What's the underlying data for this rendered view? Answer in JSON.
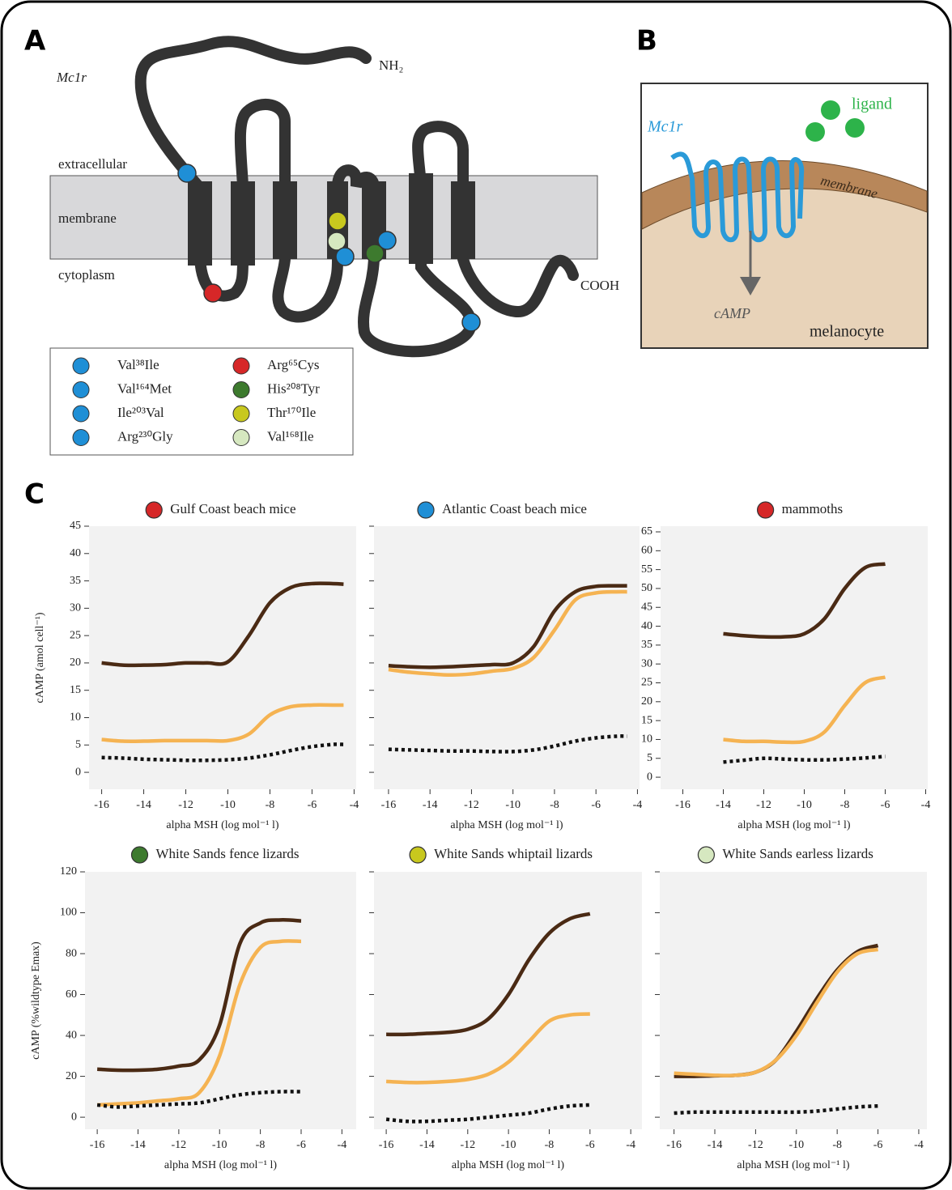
{
  "panel_labels": [
    "A",
    "B",
    "C"
  ],
  "panel_a": {
    "gene": "Mc1r",
    "n_terminus": "NH₂",
    "c_terminus": "COOH",
    "regions": [
      "extracellular",
      "membrane",
      "cytoplasm"
    ],
    "legend": [
      {
        "label": "Val³⁸Ile",
        "color": "#1f8fd6"
      },
      {
        "label": "Val¹⁶⁴Met",
        "color": "#1f8fd6"
      },
      {
        "label": "Ile²⁰³Val",
        "color": "#1f8fd6"
      },
      {
        "label": "Arg²³⁰Gly",
        "color": "#1f8fd6"
      },
      {
        "label": "Arg⁶⁵Cys",
        "color": "#d62728"
      },
      {
        "label": "His²⁰⁸Tyr",
        "color": "#3d7a2e"
      },
      {
        "label": "Thr¹⁷⁰Ile",
        "color": "#c8c81e"
      },
      {
        "label": "Val¹⁶⁸Ile",
        "color": "#d6e8c0"
      }
    ]
  },
  "panel_b": {
    "gene": "Mc1r",
    "ligand": "ligand",
    "membrane": "membrane",
    "product": "cAMP",
    "cell": "melanocyte"
  },
  "chart_data": [
    {
      "type": "line",
      "title": "Gulf Coast beach mice",
      "title_color": "#d62728",
      "ylabel": "cAMP (amol cell⁻¹)",
      "xlabel": "alpha MSH (log mol⁻¹ l)",
      "x": [
        -16,
        -15,
        -14,
        -13,
        -12,
        -11,
        -10,
        -9,
        -8,
        -7,
        -6,
        -5,
        -4.5
      ],
      "xlim": [
        -16.6,
        -3.9
      ],
      "xticks": [
        -16,
        -14,
        -12,
        -10,
        -8,
        -6,
        -4
      ],
      "ylim": [
        -3.1,
        45
      ],
      "yticks": [
        0,
        5,
        10,
        15,
        20,
        25,
        30,
        35,
        40,
        45
      ],
      "ytick_labels": true,
      "series": [
        {
          "color": "#4a2a14",
          "dash": false,
          "values": [
            20,
            19.6,
            19.6,
            19.7,
            20,
            20,
            20.2,
            25,
            31,
            33.8,
            34.5,
            34.5,
            34.4
          ]
        },
        {
          "color": "#f5b352",
          "dash": false,
          "values": [
            6,
            5.7,
            5.7,
            5.8,
            5.8,
            5.8,
            5.8,
            7,
            10.5,
            12,
            12.3,
            12.3,
            12.3
          ]
        },
        {
          "color": "#111111",
          "dash": true,
          "values": [
            2.7,
            2.6,
            2.4,
            2.3,
            2.2,
            2.2,
            2.3,
            2.6,
            3.2,
            4,
            4.7,
            5.1,
            5.1
          ]
        }
      ]
    },
    {
      "type": "line",
      "title": "Atlantic Coast beach mice",
      "title_color": "#1f8fd6",
      "xlabel": "alpha MSH (log mol⁻¹ l)",
      "x": [
        -16,
        -15,
        -14,
        -13,
        -12,
        -11,
        -10,
        -9,
        -8,
        -7,
        -6,
        -5,
        -4.5
      ],
      "xlim": [
        -16.7,
        -3.9
      ],
      "xticks": [
        -16,
        -14,
        -12,
        -10,
        -8,
        -6,
        -4
      ],
      "ylim": [
        -3.1,
        45
      ],
      "yticks": [
        0,
        5,
        10,
        15,
        20,
        25,
        30,
        35,
        40,
        45
      ],
      "ytick_labels": false,
      "series": [
        {
          "color": "#4a2a14",
          "dash": false,
          "values": [
            19.5,
            19.3,
            19.2,
            19.3,
            19.5,
            19.7,
            20,
            23,
            29.5,
            33,
            34,
            34.1,
            34.1
          ]
        },
        {
          "color": "#f5b352",
          "dash": false,
          "values": [
            18.8,
            18.3,
            18,
            17.8,
            18,
            18.5,
            19,
            21,
            26,
            31.5,
            32.8,
            33,
            33
          ]
        },
        {
          "color": "#111111",
          "dash": true,
          "values": [
            4.2,
            4.1,
            4,
            3.9,
            3.9,
            3.8,
            3.8,
            4.1,
            4.8,
            5.7,
            6.3,
            6.6,
            6.6
          ]
        }
      ]
    },
    {
      "type": "line",
      "title": "mammoths",
      "title_color": "#d62728",
      "xlabel": "alpha MSH (log mol⁻¹ l)",
      "x": [
        -14,
        -13,
        -12,
        -11,
        -10,
        -9,
        -8,
        -7,
        -6
      ],
      "xlim": [
        -17.1,
        -3.9
      ],
      "xticks": [
        -16,
        -14,
        -12,
        -10,
        -8,
        -6,
        -4
      ],
      "ylim": [
        -3.2,
        66.5
      ],
      "yticks": [
        0,
        5,
        10,
        15,
        20,
        25,
        30,
        35,
        40,
        45,
        50,
        55,
        60,
        65
      ],
      "ytick_labels": true,
      "series": [
        {
          "color": "#4a2a14",
          "dash": false,
          "values": [
            38,
            37.5,
            37.2,
            37.2,
            38,
            42,
            50,
            55.5,
            56.5
          ]
        },
        {
          "color": "#f5b352",
          "dash": false,
          "values": [
            10,
            9.5,
            9.5,
            9.3,
            9.5,
            12,
            19,
            25,
            26.5
          ]
        },
        {
          "color": "#111111",
          "dash": true,
          "values": [
            4,
            4.5,
            5,
            4.8,
            4.6,
            4.6,
            4.8,
            5.1,
            5.5
          ]
        }
      ]
    },
    {
      "type": "line",
      "title": "White Sands fence lizards",
      "title_color": "#3d7a2e",
      "ylabel": "cAMP (%wildtype Emax)",
      "xlabel": "alpha MSH (log mol⁻¹ l)",
      "x": [
        -16,
        -15,
        -14,
        -13,
        -12,
        -11,
        -10,
        -9,
        -8,
        -7,
        -6
      ],
      "xlim": [
        -16.6,
        -3.3
      ],
      "xticks": [
        -16,
        -14,
        -12,
        -10,
        -8,
        -6,
        -4
      ],
      "ylim": [
        -5.9,
        120
      ],
      "yticks": [
        0,
        20,
        40,
        60,
        80,
        100,
        120
      ],
      "ytick_labels": true,
      "series": [
        {
          "color": "#4a2a14",
          "dash": false,
          "values": [
            23.5,
            23,
            23,
            23.5,
            25,
            28,
            45,
            85,
            95,
            96.5,
            96
          ]
        },
        {
          "color": "#f5b352",
          "dash": false,
          "values": [
            6,
            6.5,
            7,
            8,
            9,
            12,
            30,
            65,
            83,
            86,
            86
          ]
        },
        {
          "color": "#111111",
          "dash": true,
          "values": [
            6,
            5,
            5.5,
            6,
            6.5,
            7,
            9,
            11,
            12,
            12.5,
            12.5
          ]
        }
      ]
    },
    {
      "type": "line",
      "title": "White Sands whiptail lizards",
      "title_color": "#c8c81e",
      "xlabel": "alpha MSH (log mol⁻¹ l)",
      "x": [
        -16,
        -15,
        -14,
        -13,
        -12,
        -11,
        -10,
        -9,
        -8,
        -7,
        -6
      ],
      "xlim": [
        -16.6,
        -3.45
      ],
      "xticks": [
        -16,
        -14,
        -12,
        -10,
        -8,
        -6,
        -4
      ],
      "ylim": [
        -5.9,
        120
      ],
      "yticks": [
        0,
        20,
        40,
        60,
        80,
        100,
        120
      ],
      "ytick_labels": false,
      "series": [
        {
          "color": "#4a2a14",
          "dash": false,
          "values": [
            40.5,
            40.5,
            41,
            41.5,
            43,
            48,
            60,
            77,
            90,
            97,
            99.5
          ]
        },
        {
          "color": "#f5b352",
          "dash": false,
          "values": [
            17.5,
            17,
            17,
            17.5,
            18.5,
            21,
            27,
            37,
            47,
            50,
            50.5
          ]
        },
        {
          "color": "#111111",
          "dash": true,
          "values": [
            -1,
            -2,
            -2,
            -1.5,
            -1,
            0,
            1,
            2,
            4,
            5.5,
            6
          ]
        }
      ]
    },
    {
      "type": "line",
      "title": "White Sands earless lizards",
      "title_color": "#d6e8c0",
      "xlabel": "alpha MSH (log mol⁻¹ l)",
      "x": [
        -16,
        -15,
        -14,
        -13,
        -12,
        -11,
        -10,
        -9,
        -8,
        -7,
        -6
      ],
      "xlim": [
        -16.7,
        -3.6
      ],
      "xticks": [
        -16,
        -14,
        -12,
        -10,
        -8,
        -6,
        -4
      ],
      "ylim": [
        -5.9,
        120
      ],
      "yticks": [
        0,
        20,
        40,
        60,
        80,
        100,
        120
      ],
      "ytick_labels": false,
      "series": [
        {
          "color": "#4a2a14",
          "dash": false,
          "values": [
            20,
            20,
            20.3,
            20.5,
            22,
            28,
            42,
            58,
            72,
            81,
            84
          ]
        },
        {
          "color": "#f5b352",
          "dash": false,
          "values": [
            21.5,
            21,
            20.5,
            20.5,
            22,
            28,
            40,
            56,
            71,
            80,
            82
          ]
        },
        {
          "color": "#111111",
          "dash": true,
          "values": [
            2,
            2.5,
            2.5,
            2.5,
            2.5,
            2.5,
            2.5,
            3,
            4,
            5,
            5.5
          ]
        }
      ]
    }
  ]
}
